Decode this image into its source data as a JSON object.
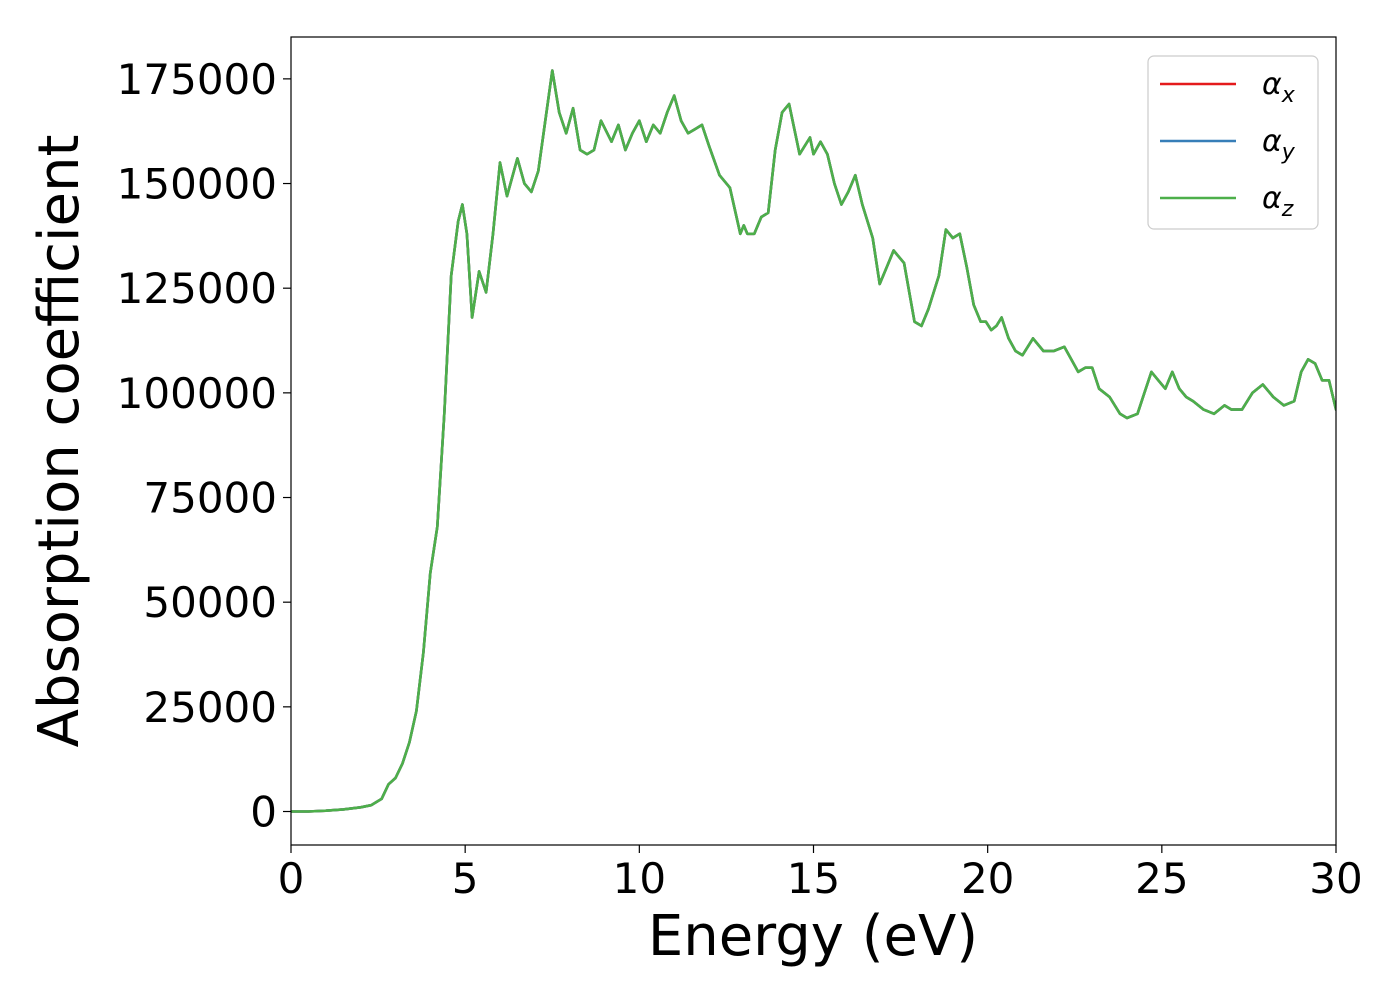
{
  "chart_data": {
    "type": "line",
    "xlabel": "Energy (eV)",
    "ylabel": "Absorption coefficient",
    "xlim": [
      0,
      30
    ],
    "ylim": [
      -8000,
      185000
    ],
    "xticks": [
      0,
      5,
      10,
      15,
      20,
      25,
      30
    ],
    "xtick_labels": [
      "0",
      "5",
      "10",
      "15",
      "20",
      "25",
      "30"
    ],
    "yticks": [
      0,
      25000,
      50000,
      75000,
      100000,
      125000,
      150000,
      175000
    ],
    "ytick_labels": [
      "0",
      "25000",
      "50000",
      "75000",
      "100000",
      "125000",
      "150000",
      "175000"
    ],
    "grid": false,
    "legend": {
      "position": "top-right",
      "entries": [
        {
          "base": "α",
          "sub": "x",
          "color": "#e41a1c"
        },
        {
          "base": "α",
          "sub": "y",
          "color": "#377eb8"
        },
        {
          "base": "α",
          "sub": "z",
          "color": "#4daf4a"
        }
      ]
    },
    "x": [
      0,
      0.5,
      1.0,
      1.5,
      2.0,
      2.3,
      2.6,
      2.8,
      3.0,
      3.2,
      3.4,
      3.6,
      3.8,
      4.0,
      4.2,
      4.4,
      4.6,
      4.8,
      4.92,
      5.05,
      5.2,
      5.4,
      5.6,
      5.8,
      6.0,
      6.2,
      6.5,
      6.7,
      6.9,
      7.1,
      7.3,
      7.5,
      7.7,
      7.9,
      8.1,
      8.3,
      8.5,
      8.7,
      8.9,
      9.2,
      9.4,
      9.6,
      9.8,
      10.0,
      10.2,
      10.4,
      10.6,
      10.8,
      11.0,
      11.2,
      11.4,
      11.6,
      11.8,
      12.0,
      12.3,
      12.6,
      12.9,
      13.0,
      13.1,
      13.3,
      13.5,
      13.7,
      13.9,
      14.1,
      14.3,
      14.6,
      14.9,
      15.0,
      15.2,
      15.4,
      15.6,
      15.8,
      16.0,
      16.2,
      16.4,
      16.7,
      16.9,
      17.1,
      17.3,
      17.6,
      17.9,
      18.1,
      18.3,
      18.6,
      18.8,
      19.0,
      19.2,
      19.4,
      19.6,
      19.8,
      19.95,
      20.1,
      20.25,
      20.4,
      20.6,
      20.8,
      21.0,
      21.3,
      21.6,
      21.9,
      22.2,
      22.4,
      22.6,
      22.8,
      23.0,
      23.2,
      23.5,
      23.8,
      24.0,
      24.3,
      24.5,
      24.7,
      24.9,
      25.1,
      25.3,
      25.5,
      25.7,
      25.9,
      26.2,
      26.5,
      26.8,
      27.0,
      27.3,
      27.6,
      27.9,
      28.2,
      28.5,
      28.8,
      29.0,
      29.2,
      29.4,
      29.6,
      29.8,
      30.0
    ],
    "series": [
      {
        "name": "αx",
        "color": "#e41a1c",
        "values": [
          0,
          0,
          200,
          500,
          1000,
          1500,
          3000,
          6500,
          8000,
          11500,
          16500,
          24000,
          38000,
          57000,
          68000,
          95000,
          128000,
          141000,
          145000,
          138000,
          118000,
          129000,
          124000,
          138000,
          155000,
          147000,
          156000,
          150000,
          148000,
          153000,
          165000,
          177000,
          167000,
          162000,
          168000,
          158000,
          157000,
          158000,
          165000,
          160000,
          164000,
          158000,
          162000,
          165000,
          160000,
          164000,
          162000,
          167000,
          171000,
          165000,
          162000,
          163000,
          164000,
          159000,
          152000,
          149000,
          138000,
          140000,
          138000,
          138000,
          142000,
          143000,
          158000,
          167000,
          169000,
          157000,
          161000,
          157000,
          160000,
          157000,
          150000,
          145000,
          148000,
          152000,
          145000,
          137000,
          126000,
          130000,
          134000,
          131000,
          117000,
          116000,
          120000,
          128000,
          139000,
          137000,
          138000,
          130000,
          121000,
          117000,
          117000,
          115000,
          116000,
          118000,
          113000,
          110000,
          109000,
          113000,
          110000,
          110000,
          111000,
          108000,
          105000,
          106000,
          106000,
          101000,
          99000,
          95000,
          94000,
          95000,
          100000,
          105000,
          103000,
          101000,
          105000,
          101000,
          99000,
          98000,
          96000,
          95000,
          97000,
          96000,
          96000,
          100000,
          102000,
          99000,
          97000,
          98000,
          105000,
          108000,
          107000,
          103000,
          103000,
          96000
        ]
      },
      {
        "name": "αy",
        "color": "#377eb8",
        "values": [
          0,
          0,
          200,
          500,
          1000,
          1500,
          3000,
          6500,
          8000,
          11500,
          16500,
          24000,
          38000,
          57000,
          68000,
          95000,
          128000,
          141000,
          145000,
          138000,
          118000,
          129000,
          124000,
          138000,
          155000,
          147000,
          156000,
          150000,
          148000,
          153000,
          165000,
          177000,
          167000,
          162000,
          168000,
          158000,
          157000,
          158000,
          165000,
          160000,
          164000,
          158000,
          162000,
          165000,
          160000,
          164000,
          162000,
          167000,
          171000,
          165000,
          162000,
          163000,
          164000,
          159000,
          152000,
          149000,
          138000,
          140000,
          138000,
          138000,
          142000,
          143000,
          158000,
          167000,
          169000,
          157000,
          161000,
          157000,
          160000,
          157000,
          150000,
          145000,
          148000,
          152000,
          145000,
          137000,
          126000,
          130000,
          134000,
          131000,
          117000,
          116000,
          120000,
          128000,
          139000,
          137000,
          138000,
          130000,
          121000,
          117000,
          117000,
          115000,
          116000,
          118000,
          113000,
          110000,
          109000,
          113000,
          110000,
          110000,
          111000,
          108000,
          105000,
          106000,
          106000,
          101000,
          99000,
          95000,
          94000,
          95000,
          100000,
          105000,
          103000,
          101000,
          105000,
          101000,
          99000,
          98000,
          96000,
          95000,
          97000,
          96000,
          96000,
          100000,
          102000,
          99000,
          97000,
          98000,
          105000,
          108000,
          107000,
          103000,
          103000,
          96000
        ]
      },
      {
        "name": "αz",
        "color": "#4daf4a",
        "values": [
          0,
          0,
          200,
          500,
          1000,
          1500,
          3000,
          6500,
          8000,
          11500,
          16500,
          24000,
          38000,
          57000,
          68000,
          95000,
          128000,
          141000,
          145000,
          138000,
          118000,
          129000,
          124000,
          138000,
          155000,
          147000,
          156000,
          150000,
          148000,
          153000,
          165000,
          177000,
          167000,
          162000,
          168000,
          158000,
          157000,
          158000,
          165000,
          160000,
          164000,
          158000,
          162000,
          165000,
          160000,
          164000,
          162000,
          167000,
          171000,
          165000,
          162000,
          163000,
          164000,
          159000,
          152000,
          149000,
          138000,
          140000,
          138000,
          138000,
          142000,
          143000,
          158000,
          167000,
          169000,
          157000,
          161000,
          157000,
          160000,
          157000,
          150000,
          145000,
          148000,
          152000,
          145000,
          137000,
          126000,
          130000,
          134000,
          131000,
          117000,
          116000,
          120000,
          128000,
          139000,
          137000,
          138000,
          130000,
          121000,
          117000,
          117000,
          115000,
          116000,
          118000,
          113000,
          110000,
          109000,
          113000,
          110000,
          110000,
          111000,
          108000,
          105000,
          106000,
          106000,
          101000,
          99000,
          95000,
          94000,
          95000,
          100000,
          105000,
          103000,
          101000,
          105000,
          101000,
          99000,
          98000,
          96000,
          95000,
          97000,
          96000,
          96000,
          100000,
          102000,
          99000,
          97000,
          98000,
          105000,
          108000,
          107000,
          103000,
          103000,
          96000
        ]
      }
    ]
  }
}
